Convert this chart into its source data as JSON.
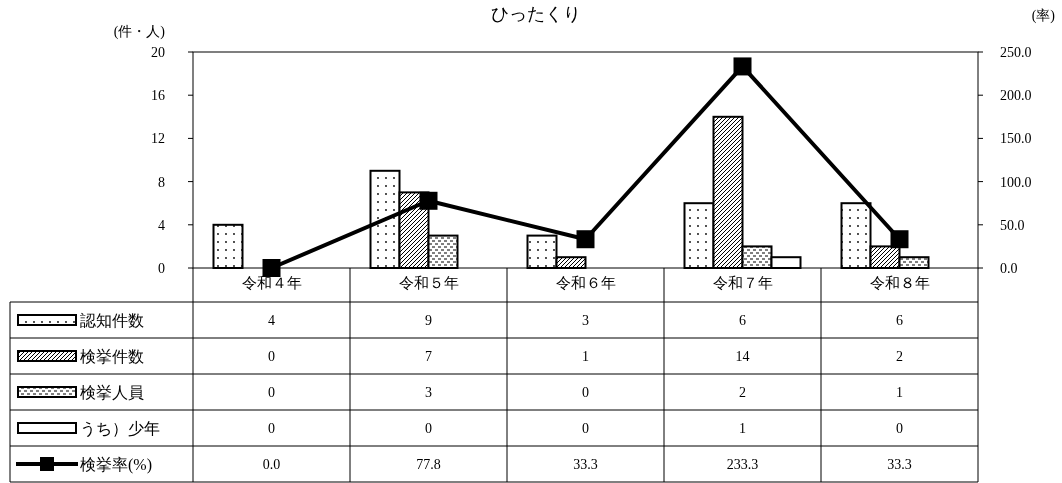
{
  "chart_data": {
    "type": "bar",
    "title": "ひったくり",
    "ylabel": "(件・人)",
    "y2label": "(率)",
    "categories": [
      "令和４年",
      "令和５年",
      "令和６年",
      "令和７年",
      "令和８年"
    ],
    "series": [
      {
        "name": "認知件数",
        "color": "#000000",
        "values": [
          4,
          9,
          3,
          6,
          6
        ]
      },
      {
        "name": "検挙件数",
        "color": "#000000",
        "values": [
          0,
          7,
          1,
          14,
          2
        ]
      },
      {
        "name": "検挙人員",
        "color": "#000000",
        "values": [
          0,
          3,
          0,
          2,
          1
        ]
      },
      {
        "name": "うち）少年",
        "color": "#ffffff",
        "values": [
          0,
          0,
          0,
          1,
          0
        ]
      },
      {
        "name": "検挙率(%)",
        "type": "line",
        "axis": "y2",
        "color": "#000000",
        "marker": "square",
        "values": [
          0.0,
          77.8,
          33.3,
          233.3,
          33.3
        ],
        "value_labels": [
          "0.0",
          "77.8",
          "33.3",
          "233.3",
          "33.3"
        ]
      }
    ],
    "ylim": [
      0,
      20
    ],
    "yticks": [
      0,
      4,
      8,
      12,
      16,
      20
    ],
    "y2lim": [
      0,
      250
    ],
    "y2ticks": [
      {
        "value": 0,
        "label": "0.0"
      },
      {
        "value": 50,
        "label": "50.0"
      },
      {
        "value": 100,
        "label": "100.0"
      },
      {
        "value": 150,
        "label": "150.0"
      },
      {
        "value": 200,
        "label": "200.0"
      },
      {
        "value": 250,
        "label": "250.0"
      }
    ],
    "data_labels": true,
    "legend": "bottom",
    "grid": false
  }
}
